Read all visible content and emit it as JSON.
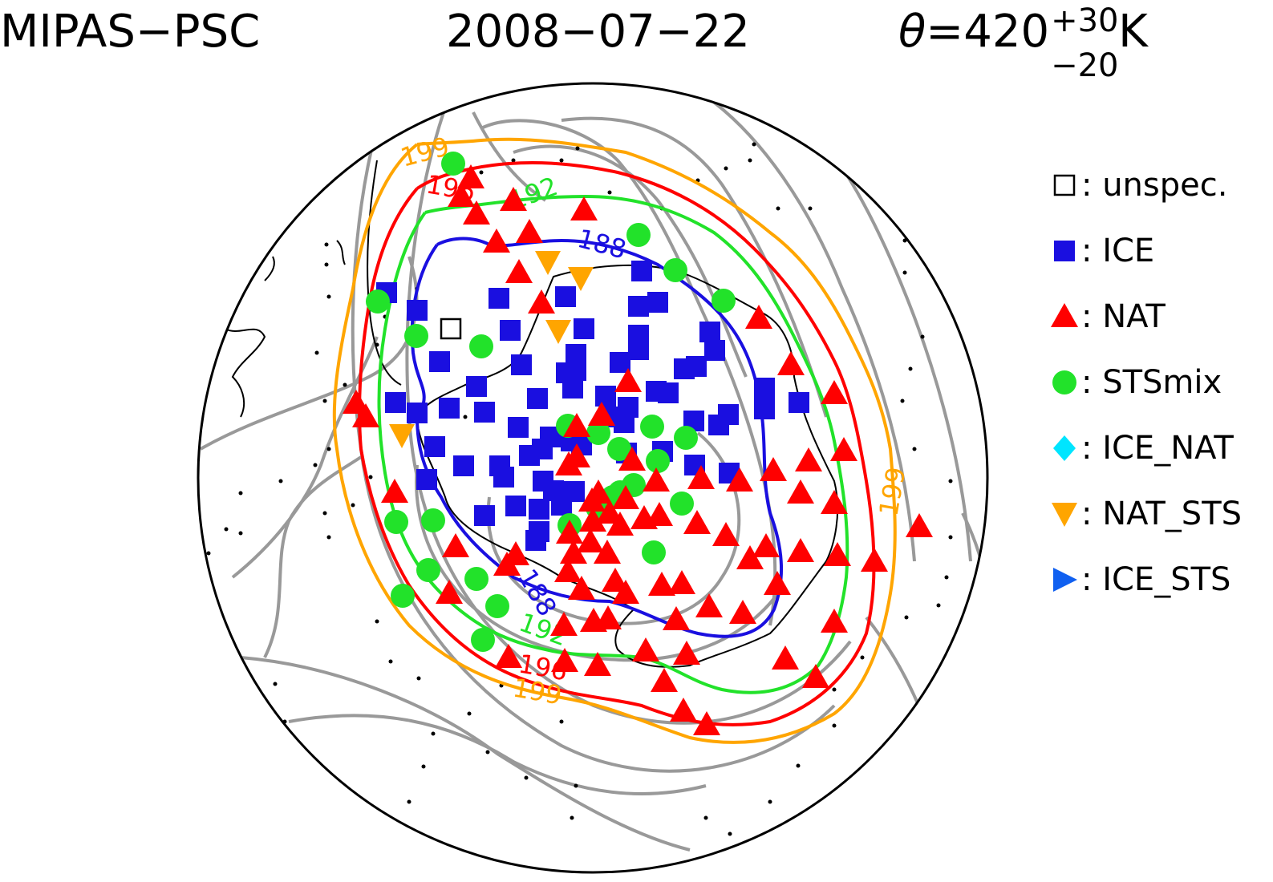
{
  "header": {
    "left_title": "MIPAS−PSC",
    "date": "2008−07−22",
    "theta_symbol": "θ",
    "theta_value": "=420",
    "theta_sup": "+30",
    "theta_sub": "−20",
    "theta_unit": "K"
  },
  "legend": [
    {
      "label": ": unspec.",
      "symbol": "square-open",
      "color": "#000000"
    },
    {
      "label": ": ICE",
      "symbol": "square",
      "color": "#1a0fe0"
    },
    {
      "label": ": NAT",
      "symbol": "triangle-up",
      "color": "#ff0000"
    },
    {
      "label": ": STSmix",
      "symbol": "circle",
      "color": "#22e22a"
    },
    {
      "label": ": ICE_NAT",
      "symbol": "diamond",
      "color": "#00e5ff"
    },
    {
      "label": ": NAT_STS",
      "symbol": "triangle-down",
      "color": "#ffa500"
    },
    {
      "label": ": ICE_STS",
      "symbol": "triangle-right",
      "color": "#1060f0"
    }
  ],
  "contours": [
    {
      "value": "188",
      "color": "#1a0fe0"
    },
    {
      "value": "192",
      "color": "#22e22a"
    },
    {
      "value": "196",
      "color": "#ff0000"
    },
    {
      "value": "199",
      "color": "#ffa500"
    }
  ],
  "colors": {
    "gray_contour": "#999999",
    "coast": "#000000"
  }
}
